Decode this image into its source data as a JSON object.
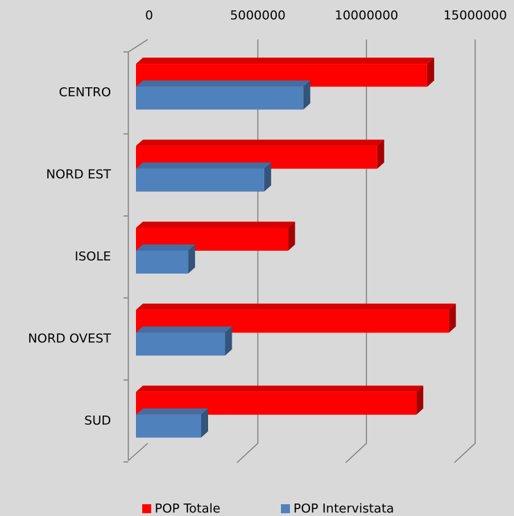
{
  "chart_data": {
    "type": "bar",
    "orientation": "horizontal",
    "categories": [
      "CENTRO",
      "NORD EST",
      "ISOLE",
      "NORD OVEST",
      "SUD"
    ],
    "series": [
      {
        "name": "POP Totale",
        "color": "#ff0000",
        "values": [
          13400000,
          11100000,
          7000000,
          14400000,
          12900000
        ]
      },
      {
        "name": "POP Intervistata",
        "color": "#4f81bd",
        "values": [
          7700000,
          5900000,
          2400000,
          4100000,
          3000000
        ]
      }
    ],
    "xlim": [
      0,
      15000000
    ],
    "xticks": [
      0,
      5000000,
      10000000,
      15000000
    ],
    "grid": true,
    "legend": "bottom"
  }
}
